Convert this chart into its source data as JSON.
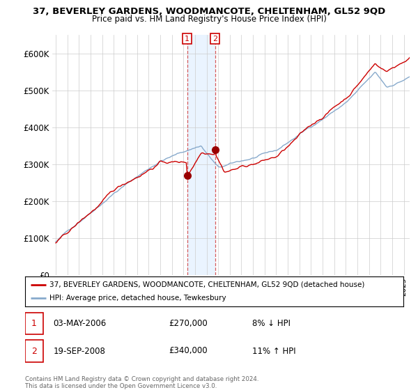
{
  "title": "37, BEVERLEY GARDENS, WOODMANCOTE, CHELTENHAM, GL52 9QD",
  "subtitle": "Price paid vs. HM Land Registry's House Price Index (HPI)",
  "property_label": "37, BEVERLEY GARDENS, WOODMANCOTE, CHELTENHAM, GL52 9QD (detached house)",
  "hpi_label": "HPI: Average price, detached house, Tewkesbury",
  "sale1_date": "03-MAY-2006",
  "sale1_price": "£270,000",
  "sale1_hpi": "8% ↓ HPI",
  "sale2_date": "19-SEP-2008",
  "sale2_price": "£340,000",
  "sale2_hpi": "11% ↑ HPI",
  "sale1_year": 2006.33,
  "sale1_price_val": 270000,
  "sale2_year": 2008.72,
  "sale2_price_val": 340000,
  "property_color": "#cc0000",
  "hpi_color": "#88aacc",
  "sale_dot_color": "#990000",
  "shading_color": "#ddeeff",
  "footer": "Contains HM Land Registry data © Crown copyright and database right 2024.\nThis data is licensed under the Open Government Licence v3.0.",
  "ylim": [
    0,
    650000
  ],
  "yticks": [
    0,
    100000,
    200000,
    300000,
    400000,
    500000,
    600000
  ],
  "ytick_labels": [
    "£0",
    "£100K",
    "£200K",
    "£300K",
    "£400K",
    "£500K",
    "£600K"
  ],
  "xlim_start": 1994.7,
  "xlim_end": 2025.5
}
